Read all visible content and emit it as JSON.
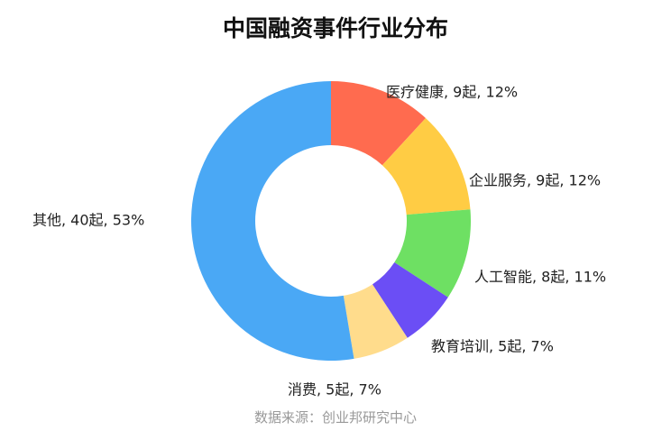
{
  "chart_data": {
    "type": "pie",
    "title": "中国融资事件行业分布",
    "slices": [
      {
        "label": "医疗健康, 9起, 12%",
        "count": 9,
        "percent": 12,
        "color": "#ff6b4f"
      },
      {
        "label": "企业服务, 9起, 12%",
        "count": 9,
        "percent": 12,
        "color": "#ffcc44"
      },
      {
        "label": "人工智能, 8起, 11%",
        "count": 8,
        "percent": 11,
        "color": "#6ee063"
      },
      {
        "label": "教育培训, 5起, 7%",
        "count": 5,
        "percent": 7,
        "color": "#6b4ef5"
      },
      {
        "label": "消费, 5起, 7%",
        "count": 5,
        "percent": 7,
        "color": "#ffdc8c"
      },
      {
        "label": "其他, 40起, 53%",
        "count": 40,
        "percent": 53,
        "color": "#4aa8f5"
      }
    ]
  },
  "footer": {
    "source": "数据来源：创业邦研究中心"
  }
}
